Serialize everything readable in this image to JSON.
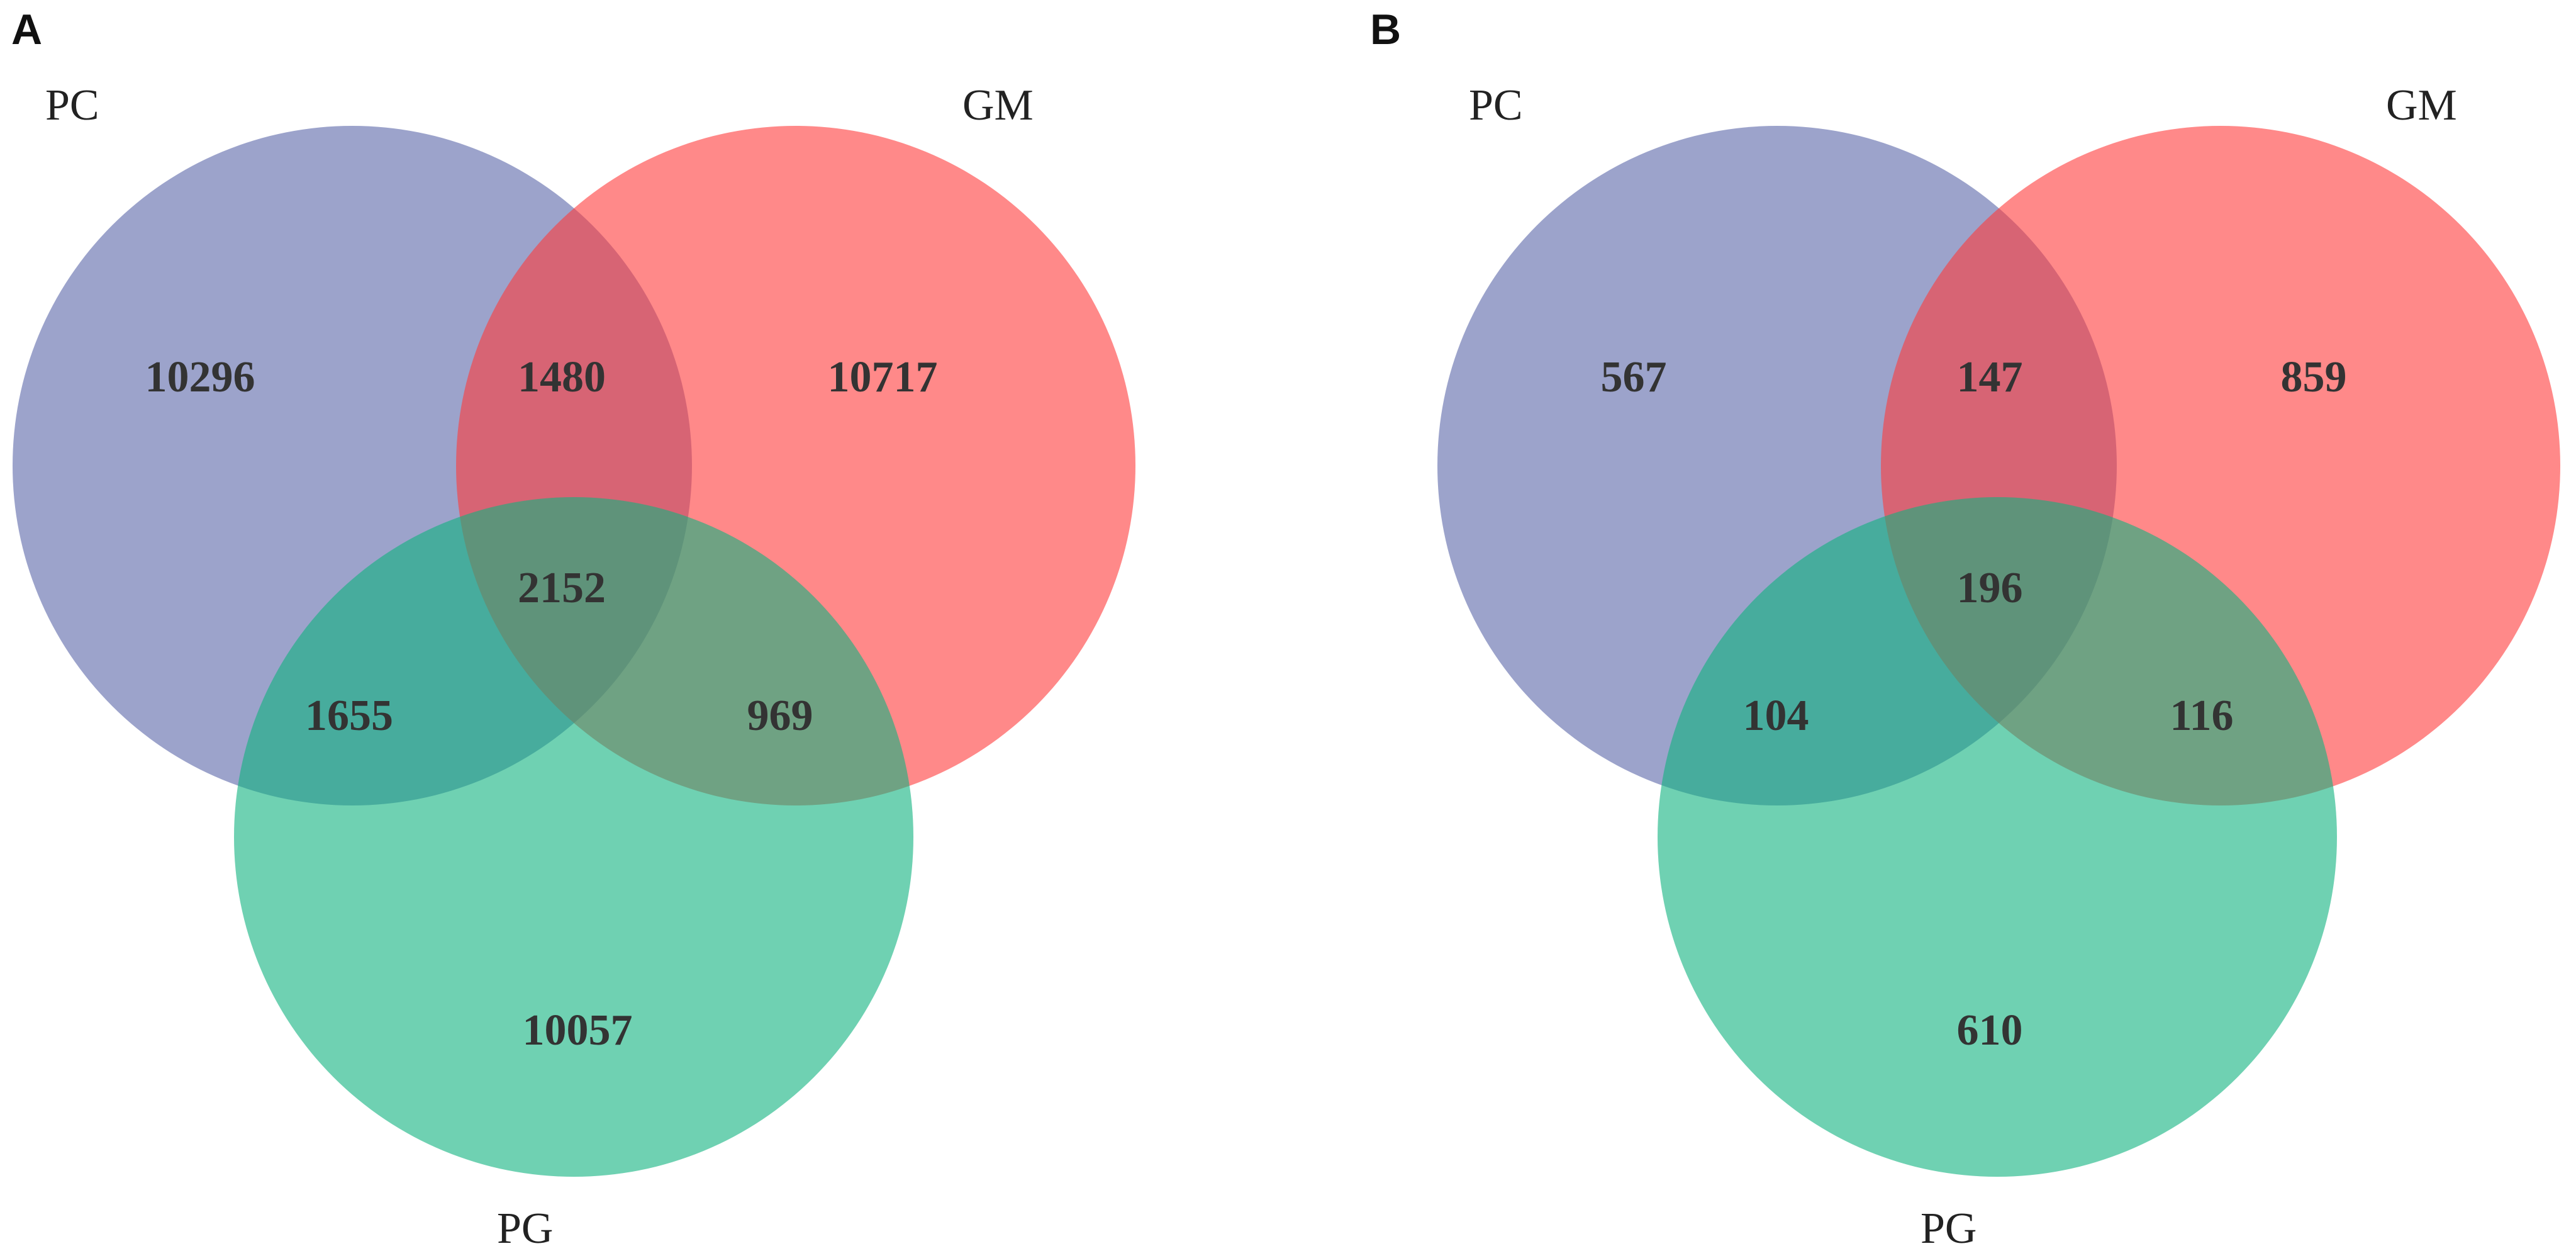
{
  "colors": {
    "PC": "#5a66a8",
    "GM": "#ff3b3b",
    "PG": "#0fb37f"
  },
  "panels": [
    {
      "letter": "A",
      "labels": {
        "PC": "PC",
        "GM": "GM",
        "PG": "PG"
      },
      "counts": {
        "PC_only": "10296",
        "PC_GM": "1480",
        "GM_only": "10717",
        "PC_GM_PG": "2152",
        "PC_PG": "1655",
        "GM_PG": "969",
        "PG_only": "10057"
      }
    },
    {
      "letter": "B",
      "labels": {
        "PC": "PC",
        "GM": "GM",
        "PG": "PG"
      },
      "counts": {
        "PC_only": "567",
        "PC_GM": "147",
        "GM_only": "859",
        "PC_GM_PG": "196",
        "PC_PG": "104",
        "GM_PG": "116",
        "PG_only": "610"
      }
    }
  ]
}
